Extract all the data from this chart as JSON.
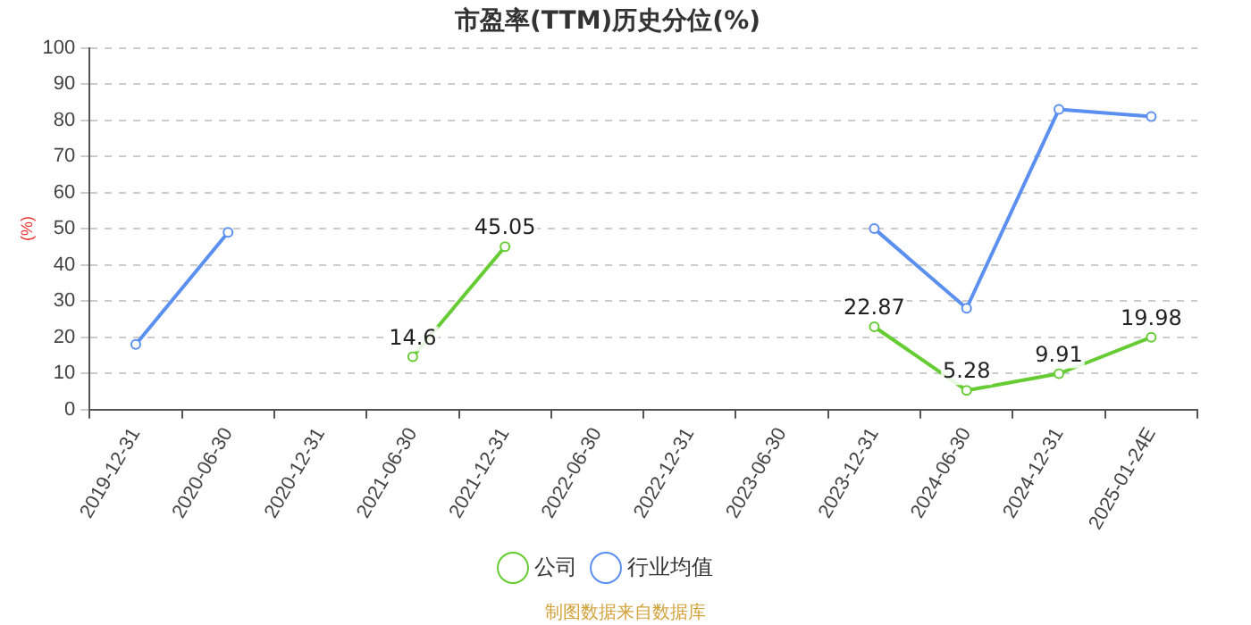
{
  "chart_data": {
    "type": "line",
    "title": "市盈率(TTM)历史分位(%)",
    "ylabel": "(%)",
    "categories": [
      "2019-12-31",
      "2020-06-30",
      "2020-12-31",
      "2021-06-30",
      "2021-12-31",
      "2022-06-30",
      "2022-12-31",
      "2023-06-30",
      "2023-12-31",
      "2024-06-30",
      "2024-12-31",
      "2025-01-24E"
    ],
    "series": [
      {
        "name": "公司",
        "color": "#66cc33",
        "values": [
          null,
          null,
          null,
          14.6,
          45.05,
          null,
          null,
          null,
          22.87,
          5.28,
          9.91,
          19.98
        ],
        "value_labels": [
          null,
          null,
          null,
          "14.6",
          "45.05",
          null,
          null,
          null,
          "22.87",
          "5.28",
          "9.91",
          "19.98"
        ]
      },
      {
        "name": "行业均值",
        "color": "#5b8ff0",
        "values": [
          18,
          49,
          null,
          null,
          null,
          null,
          null,
          null,
          50,
          28,
          83,
          81
        ]
      }
    ],
    "ylim": [
      0,
      100
    ],
    "yticks": [
      0,
      10,
      20,
      30,
      40,
      50,
      60,
      70,
      80,
      90,
      100
    ],
    "grid": "y",
    "legend": "bottom",
    "marker": "circle",
    "annotations": [
      "制图数据来自数据库"
    ]
  }
}
